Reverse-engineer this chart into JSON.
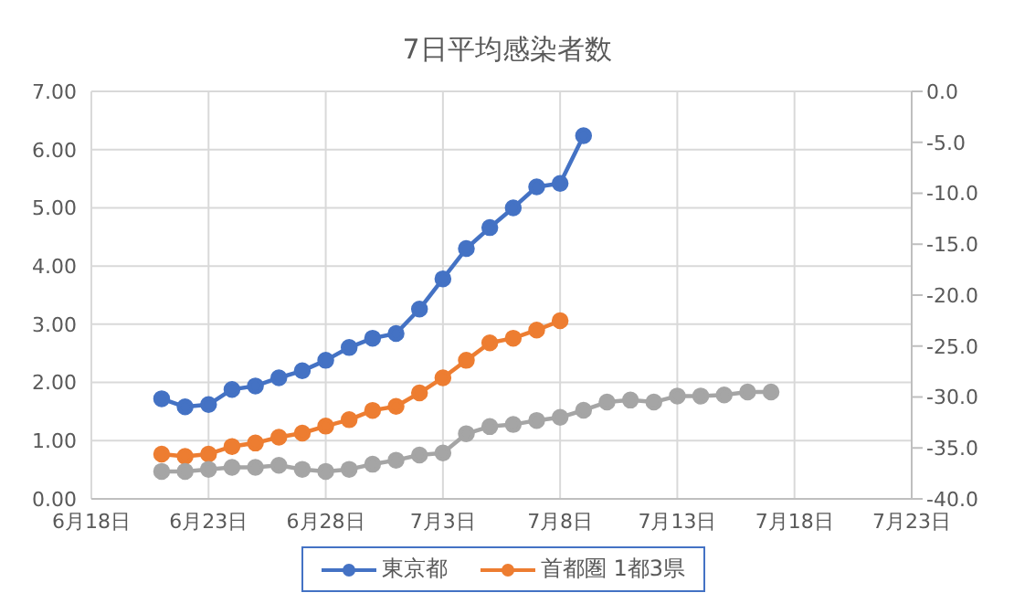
{
  "chart_data": {
    "type": "line",
    "title": "7日平均感染者数",
    "xlim": [
      "--06-18",
      "--07-23"
    ],
    "xticks": [
      {
        "value": "--06-18",
        "label": "6月18日"
      },
      {
        "value": "--06-23",
        "label": "6月23日"
      },
      {
        "value": "--06-28",
        "label": "6月28日"
      },
      {
        "value": "--07-03",
        "label": "7月3日"
      },
      {
        "value": "--07-08",
        "label": "7月8日"
      },
      {
        "value": "--07-13",
        "label": "7月13日"
      },
      {
        "value": "--07-18",
        "label": "7月18日"
      },
      {
        "value": "--07-23",
        "label": "7月23日"
      }
    ],
    "ylim": [
      0,
      7
    ],
    "yticks": [
      {
        "value": 0,
        "label": "0.00"
      },
      {
        "value": 1,
        "label": "1.00"
      },
      {
        "value": 2,
        "label": "2.00"
      },
      {
        "value": 3,
        "label": "3.00"
      },
      {
        "value": 4,
        "label": "4.00"
      },
      {
        "value": 5,
        "label": "5.00"
      },
      {
        "value": 6,
        "label": "6.00"
      },
      {
        "value": 7,
        "label": "7.00"
      }
    ],
    "y2lim": [
      -40,
      0
    ],
    "y2ticks": [
      {
        "value": -40,
        "label": "-40.0"
      },
      {
        "value": -35,
        "label": "-35.0"
      },
      {
        "value": -30,
        "label": "-30.0"
      },
      {
        "value": -25,
        "label": "-25.0"
      },
      {
        "value": -20,
        "label": "-20.0"
      },
      {
        "value": -15,
        "label": "-15.0"
      },
      {
        "value": -10,
        "label": "-10.0"
      },
      {
        "value": -5,
        "label": "-5.0"
      },
      {
        "value": 0,
        "label": "0.0"
      }
    ],
    "grid": true,
    "legend": "bottom",
    "marker": "circle",
    "line_style": "solid",
    "series": [
      {
        "name": "東京都",
        "color": "#4472c4",
        "x": [
          "--06-21",
          "--06-22",
          "--06-23",
          "--06-24",
          "--06-25",
          "--06-26",
          "--06-27",
          "--06-28",
          "--06-29",
          "--06-30",
          "--07-01",
          "--07-02",
          "--07-03",
          "--07-04",
          "--07-05",
          "--07-06",
          "--07-07",
          "--07-08",
          "--07-09"
        ],
        "values": [
          1.72,
          1.58,
          1.62,
          1.88,
          1.94,
          2.08,
          2.2,
          2.38,
          2.6,
          2.76,
          2.84,
          3.26,
          3.78,
          4.3,
          4.66,
          5.0,
          5.36,
          5.42,
          6.24
        ]
      },
      {
        "name": "首都圏 1都3県",
        "color": "#ed7d31",
        "x": [
          "--06-21",
          "--06-22",
          "--06-23",
          "--06-24",
          "--06-25",
          "--06-26",
          "--06-27",
          "--06-28",
          "--06-29",
          "--06-30",
          "--07-01",
          "--07-02",
          "--07-03",
          "--07-04",
          "--07-05",
          "--07-06",
          "--07-07",
          "--07-08"
        ],
        "values": [
          0.77,
          0.73,
          0.77,
          0.9,
          0.96,
          1.06,
          1.13,
          1.25,
          1.36,
          1.52,
          1.59,
          1.82,
          2.08,
          2.38,
          2.68,
          2.76,
          2.9,
          3.06
        ]
      },
      {
        "color": "#a5a5a5",
        "axis": "y2",
        "x": [
          "--06-21",
          "--06-22",
          "--06-23",
          "--06-24",
          "--06-25",
          "--06-26",
          "--06-27",
          "--06-28",
          "--06-29",
          "--06-30",
          "--07-01",
          "--07-02",
          "--07-03",
          "--07-04",
          "--07-05",
          "--07-06",
          "--07-07",
          "--07-08",
          "--07-09",
          "--07-10",
          "--07-11",
          "--07-12",
          "--07-13",
          "--07-14",
          "--07-15",
          "--07-16",
          "--07-17"
        ],
        "values": [
          -37.3,
          -37.3,
          -37.1,
          -36.9,
          -36.9,
          -36.7,
          -37.1,
          -37.3,
          -37.1,
          -36.6,
          -36.2,
          -35.7,
          -35.5,
          -33.6,
          -32.9,
          -32.7,
          -32.3,
          -32.0,
          -31.3,
          -30.5,
          -30.3,
          -30.5,
          -29.9,
          -29.9,
          -29.8,
          -29.5,
          -29.5
        ]
      }
    ]
  }
}
